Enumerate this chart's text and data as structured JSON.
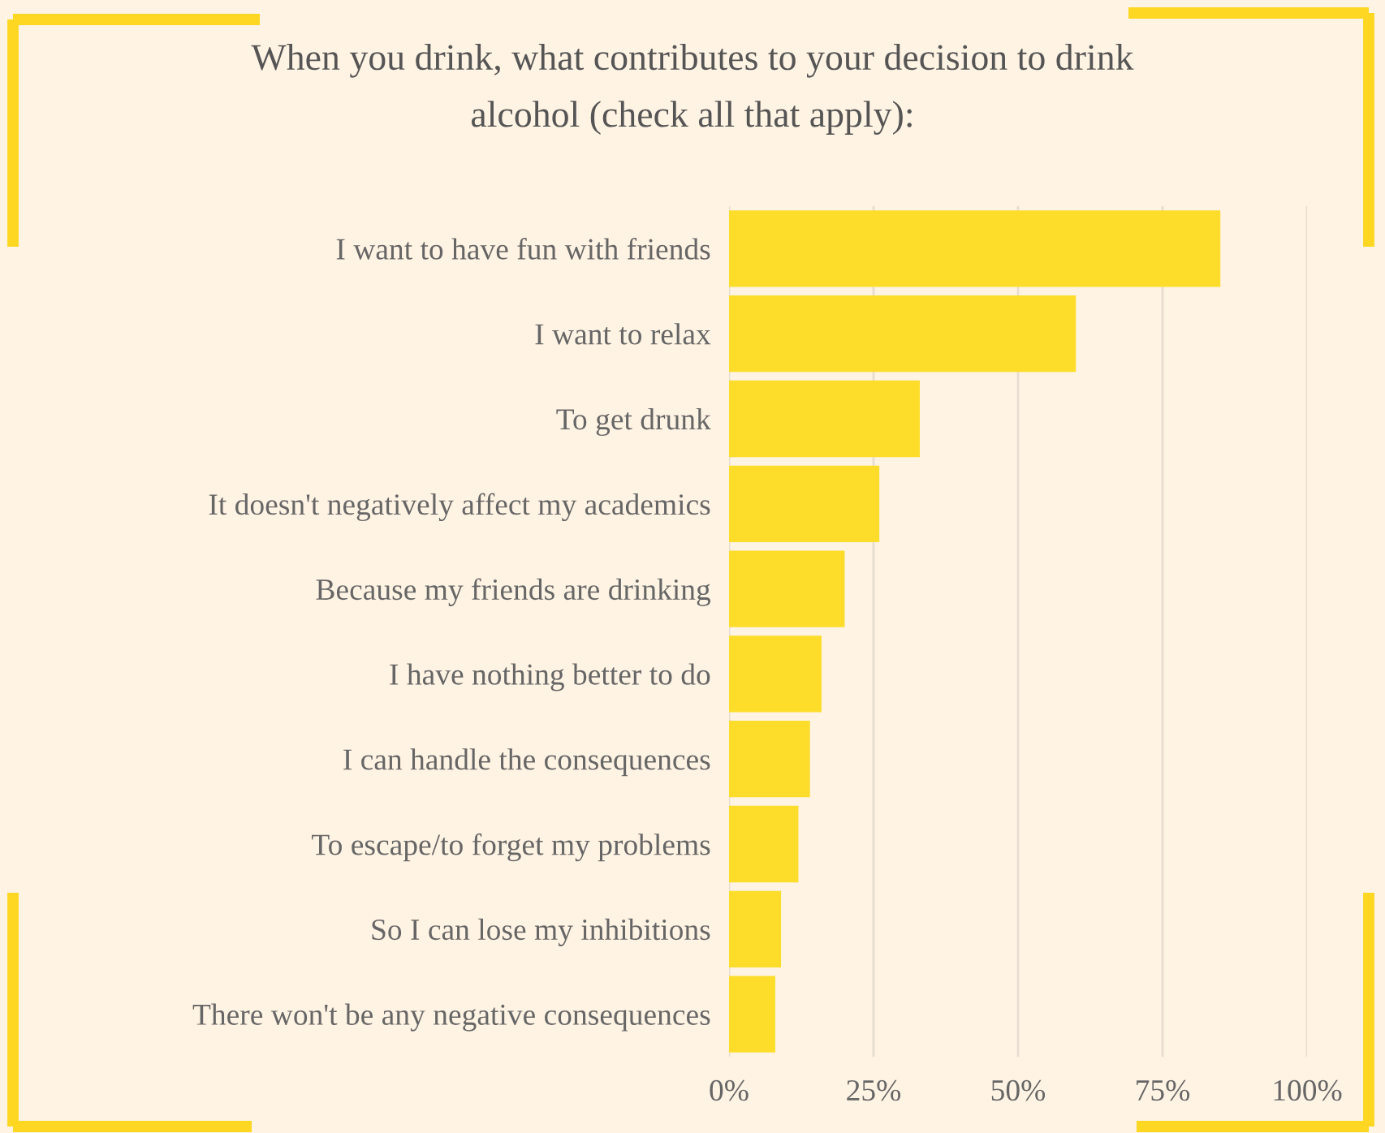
{
  "chart_data": {
    "type": "bar",
    "orientation": "horizontal",
    "title": "When you drink, what contributes to your decision to drink\nalcohol (check all that apply):",
    "categories": [
      "I want to have fun with friends",
      "I want to relax",
      "To get drunk",
      "It doesn't negatively affect my academics",
      "Because my friends are drinking",
      "I have nothing better to do",
      "I can handle the consequences",
      "To escape/to forget my problems",
      "So I can lose my inhibitions",
      "There won't be any negative consequences"
    ],
    "values": [
      85,
      60,
      33,
      26,
      20,
      16,
      14,
      12,
      9,
      8
    ],
    "color": "#fddd2a",
    "xlim": [
      0,
      100
    ],
    "xticks": [
      {
        "value": 0,
        "label": "0%"
      },
      {
        "value": 25,
        "label": "25%"
      },
      {
        "value": 50,
        "label": "50%"
      },
      {
        "value": 75,
        "label": "75%"
      },
      {
        "value": 100,
        "label": "100%"
      }
    ],
    "grid": "x"
  }
}
